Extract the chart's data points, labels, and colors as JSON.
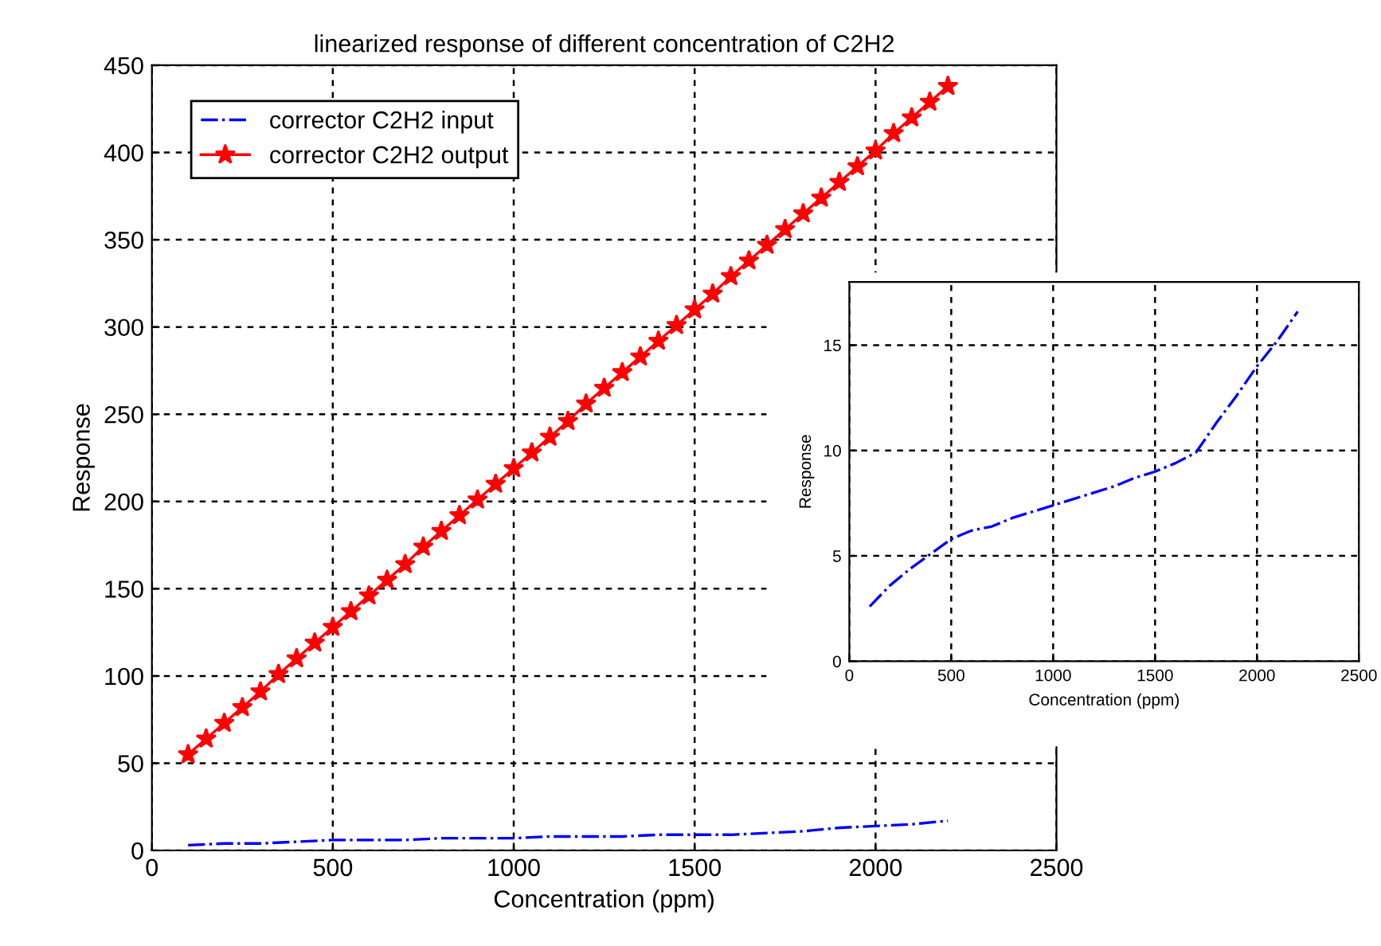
{
  "chart_data": [
    {
      "type": "line",
      "title": "linearized response of different concentration of C2H2",
      "xlabel": "Concentration (ppm)",
      "ylabel": "Response",
      "xlim": [
        0,
        2500
      ],
      "xticks": [
        0,
        500,
        1000,
        1500,
        2000,
        2500
      ],
      "ylim": [
        0,
        450
      ],
      "yticks": [
        0,
        50,
        100,
        150,
        200,
        250,
        300,
        350,
        400,
        450
      ],
      "grid": true,
      "legend": "top left",
      "series": [
        {
          "name": "corrector C2H2 input",
          "color": "#0000ff",
          "line_style": "dashed",
          "marker": "none",
          "x": [
            100,
            200,
            300,
            400,
            500,
            600,
            700,
            800,
            900,
            1000,
            1100,
            1200,
            1300,
            1400,
            1500,
            1600,
            1700,
            1800,
            1900,
            2000,
            2100,
            2200
          ],
          "values": [
            3,
            4,
            4,
            5,
            6,
            6,
            6,
            7,
            7,
            7,
            8,
            8,
            8,
            9,
            9,
            9,
            10,
            11,
            13,
            14,
            15,
            17
          ]
        },
        {
          "name": "corrector C2H2 output",
          "color": "#ff0000",
          "line_style": "solid",
          "marker": "star",
          "x": [
            100,
            150,
            200,
            250,
            300,
            350,
            400,
            450,
            500,
            550,
            600,
            650,
            700,
            750,
            800,
            850,
            900,
            950,
            1000,
            1050,
            1100,
            1150,
            1200,
            1250,
            1300,
            1350,
            1400,
            1450,
            1500,
            1550,
            1600,
            1650,
            1700,
            1750,
            1800,
            1850,
            1900,
            1950,
            2000,
            2050,
            2100,
            2150,
            2200
          ],
          "values": [
            55,
            64,
            73,
            82,
            91,
            101,
            110,
            119,
            128,
            137,
            146,
            155,
            164,
            174,
            183,
            192,
            201,
            210,
            219,
            228,
            237,
            246,
            256,
            265,
            274,
            283,
            292,
            301,
            310,
            319,
            329,
            338,
            347,
            356,
            365,
            374,
            383,
            392,
            401,
            411,
            420,
            429,
            438
          ]
        }
      ]
    },
    {
      "type": "line",
      "xlabel": "Concentration (ppm)",
      "ylabel": "Response",
      "xlim": [
        0,
        2500
      ],
      "xticks": [
        0,
        500,
        1000,
        1500,
        2000,
        2500
      ],
      "ylim": [
        0,
        18
      ],
      "yticks": [
        0,
        5,
        10,
        15
      ],
      "grid": true,
      "series": [
        {
          "color": "#0000ff",
          "line_style": "dashed",
          "marker": "none",
          "x": [
            100,
            200,
            300,
            400,
            500,
            600,
            700,
            800,
            900,
            1000,
            1100,
            1200,
            1300,
            1400,
            1500,
            1600,
            1700,
            1800,
            1900,
            2000,
            2100,
            2200
          ],
          "values": [
            2.6,
            3.6,
            4.4,
            5.1,
            5.8,
            6.2,
            6.4,
            6.8,
            7.1,
            7.4,
            7.7,
            8.0,
            8.3,
            8.7,
            9.0,
            9.4,
            9.9,
            11.3,
            12.6,
            14.0,
            15.2,
            16.6
          ]
        }
      ]
    }
  ]
}
